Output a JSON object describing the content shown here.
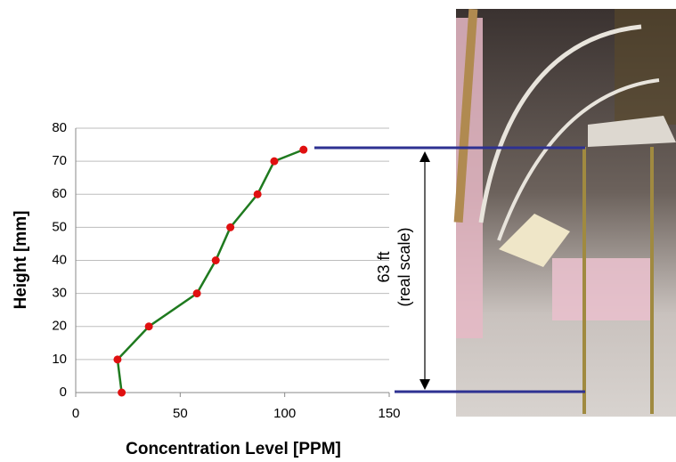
{
  "chart_data": {
    "type": "line",
    "x_label": "Concentration Level [PPM]",
    "y_label": "Height [mm]",
    "x": [
      22,
      20,
      35,
      58,
      67,
      74,
      87,
      95,
      109
    ],
    "series": [
      {
        "color": "#1f7a1f",
        "marker_color": "#e01010",
        "values": [
          0,
          10,
          20,
          30,
          40,
          50,
          60,
          70,
          73.5
        ]
      }
    ],
    "xlim": [
      0,
      150
    ],
    "xticks": [
      0,
      50,
      100,
      150
    ],
    "ylim": [
      0,
      80
    ],
    "yticks": [
      0,
      10,
      20,
      30,
      40,
      50,
      60,
      70,
      80
    ],
    "grid": true,
    "annotations": [
      "63 ft",
      "(real scale)"
    ]
  }
}
